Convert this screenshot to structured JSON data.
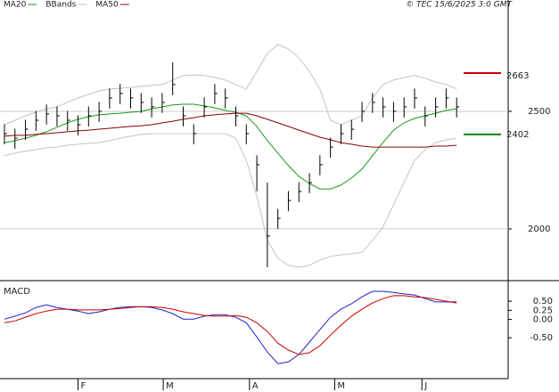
{
  "chart_data": [
    {
      "type": "ohlc",
      "source": "© TEC 15/6/2025 3:0 GMT",
      "x": [
        0,
        1,
        2,
        3,
        4,
        5,
        6,
        7,
        8,
        9,
        10,
        11,
        12,
        13,
        14,
        15,
        16,
        17,
        18,
        19,
        20,
        21,
        22,
        23,
        24,
        25,
        26,
        27,
        28,
        29,
        30,
        31,
        32,
        33,
        34,
        35,
        36,
        37,
        38,
        39,
        40,
        41,
        42,
        43
      ],
      "xlim": [
        -0.42,
        47.9
      ],
      "ylim": [
        1780,
        2928
      ],
      "yticks": [
        2000,
        2500
      ],
      "grid": true,
      "price": {
        "color": "#000000",
        "high": [
          2445,
          2426,
          2464,
          2502,
          2529,
          2521,
          2502,
          2483,
          2521,
          2540,
          2597,
          2616,
          2597,
          2578,
          2559,
          2578,
          2708,
          2521,
          2445,
          2559,
          2616,
          2597,
          2521,
          2445,
          2313,
          2197,
          2085,
          2161,
          2199,
          2237,
          2313,
          2388,
          2445,
          2464,
          2540,
          2578,
          2559,
          2540,
          2559,
          2597,
          2521,
          2559,
          2597,
          2559
        ],
        "low": [
          2360,
          2341,
          2379,
          2417,
          2444,
          2436,
          2417,
          2398,
          2436,
          2455,
          2512,
          2531,
          2512,
          2493,
          2474,
          2493,
          2569,
          2436,
          2360,
          2474,
          2531,
          2512,
          2436,
          2360,
          2160,
          1837,
          2000,
          2076,
          2114,
          2152,
          2228,
          2303,
          2360,
          2379,
          2455,
          2493,
          2474,
          2455,
          2474,
          2512,
          2436,
          2474,
          2512,
          2474
        ],
        "close": [
          2405,
          2386,
          2424,
          2462,
          2489,
          2481,
          2462,
          2443,
          2481,
          2500,
          2557,
          2576,
          2557,
          2538,
          2519,
          2538,
          2614,
          2481,
          2405,
          2519,
          2576,
          2557,
          2481,
          2405,
          2273,
          1970,
          2045,
          2121,
          2159,
          2197,
          2273,
          2348,
          2405,
          2424,
          2500,
          2538,
          2519,
          2500,
          2519,
          2557,
          2481,
          2519,
          2557,
          2519
        ]
      },
      "series": [
        {
          "name": "MA20",
          "color": "#1a9a1a",
          "values": [
            2367,
            2375,
            2386,
            2398,
            2413,
            2432,
            2451,
            2466,
            2477,
            2485,
            2489,
            2492,
            2496,
            2500,
            2511,
            2519,
            2527,
            2530,
            2530,
            2523,
            2515,
            2504,
            2496,
            2481,
            2436,
            2375,
            2322,
            2269,
            2223,
            2193,
            2170,
            2170,
            2186,
            2216,
            2254,
            2311,
            2367,
            2420,
            2451,
            2470,
            2481,
            2492,
            2504,
            2511
          ]
        },
        {
          "name": "BBands",
          "color": "#c4c4c4",
          "upper": [
            2443,
            2462,
            2481,
            2496,
            2511,
            2519,
            2538,
            2557,
            2572,
            2587,
            2595,
            2598,
            2602,
            2606,
            2610,
            2614,
            2633,
            2652,
            2655,
            2652,
            2644,
            2633,
            2614,
            2595,
            2670,
            2746,
            2784,
            2765,
            2727,
            2670,
            2595,
            2462,
            2443,
            2462,
            2481,
            2557,
            2614,
            2633,
            2644,
            2652,
            2640,
            2625,
            2614,
            2595
          ],
          "lower": [
            2311,
            2322,
            2330,
            2337,
            2345,
            2348,
            2356,
            2360,
            2364,
            2367,
            2375,
            2386,
            2394,
            2402,
            2405,
            2405,
            2405,
            2405,
            2405,
            2405,
            2405,
            2405,
            2386,
            2292,
            2140,
            1951,
            1875,
            1845,
            1837,
            1845,
            1867,
            1883,
            1890,
            1894,
            1901,
            1951,
            2008,
            2102,
            2197,
            2292,
            2337,
            2367,
            2379,
            2386
          ]
        },
        {
          "name": "MA50",
          "color": "#8b0000",
          "values": [
            2394,
            2398,
            2398,
            2402,
            2405,
            2409,
            2413,
            2417,
            2420,
            2424,
            2428,
            2432,
            2436,
            2439,
            2443,
            2451,
            2458,
            2466,
            2473,
            2481,
            2485,
            2489,
            2492,
            2492,
            2481,
            2466,
            2451,
            2436,
            2420,
            2405,
            2390,
            2379,
            2367,
            2360,
            2352,
            2348,
            2348,
            2348,
            2348,
            2348,
            2348,
            2352,
            2352,
            2356
          ]
        }
      ],
      "markers": [
        {
          "value": 2663,
          "color": "#cc0000"
        },
        {
          "value": 2402,
          "color": "#008800"
        }
      ]
    },
    {
      "type": "line",
      "title": "MACD",
      "ylim": [
        -1.62,
        0.99
      ],
      "yticks": [
        {
          "value": -0.5,
          "label": "-0.50"
        },
        {
          "value": 0,
          "label": "0.00"
        },
        {
          "value": 0.25,
          "label": "0.25"
        },
        {
          "value": 0.5,
          "label": "0.50"
        }
      ],
      "xticks": [
        {
          "value": 7,
          "label": "F"
        },
        {
          "value": 15.1,
          "label": "M"
        },
        {
          "value": 23.3,
          "label": "A"
        },
        {
          "value": 31.4,
          "label": "M"
        },
        {
          "value": 39.7,
          "label": "J"
        }
      ],
      "series": [
        {
          "color": "#2020c8",
          "values": [
            0.01,
            0.09,
            0.18,
            0.33,
            0.4,
            0.33,
            0.28,
            0.23,
            0.16,
            0.21,
            0.28,
            0.33,
            0.35,
            0.35,
            0.33,
            0.26,
            0.16,
            0.01,
            0.01,
            0.09,
            0.13,
            0.13,
            0.06,
            -0.09,
            -0.48,
            -0.89,
            -1.21,
            -1.16,
            -0.96,
            -0.62,
            -0.28,
            0.06,
            0.28,
            0.43,
            0.62,
            0.77,
            0.77,
            0.74,
            0.7,
            0.67,
            0.57,
            0.48,
            0.48,
            0.48
          ]
        },
        {
          "color": "#c80000",
          "values": [
            -0.09,
            -0.04,
            0.06,
            0.16,
            0.23,
            0.28,
            0.28,
            0.26,
            0.26,
            0.26,
            0.28,
            0.3,
            0.33,
            0.35,
            0.35,
            0.33,
            0.28,
            0.21,
            0.16,
            0.11,
            0.09,
            0.09,
            0.11,
            0.06,
            -0.09,
            -0.33,
            -0.65,
            -0.84,
            -0.96,
            -0.91,
            -0.72,
            -0.43,
            -0.16,
            0.09,
            0.28,
            0.45,
            0.57,
            0.65,
            0.65,
            0.62,
            0.6,
            0.55,
            0.5,
            0.45
          ]
        }
      ]
    }
  ]
}
